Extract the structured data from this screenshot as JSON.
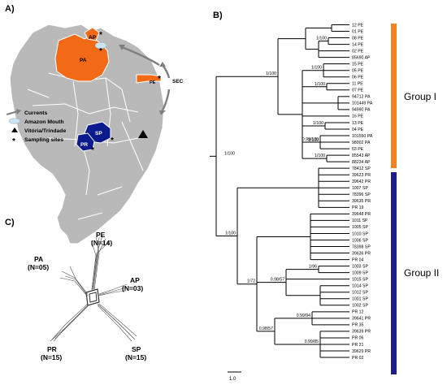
{
  "panels": {
    "a": "A)",
    "b": "B)",
    "c": "C)"
  },
  "map": {
    "state_labels": [
      "AP",
      "PA",
      "PE",
      "SP",
      "PR"
    ],
    "side_label": "SEC",
    "legend": [
      {
        "icon": "current-arrow-icon",
        "label": "Currents"
      },
      {
        "icon": "amazon-mouth-icon",
        "label": "Amazon Mouth"
      },
      {
        "icon": "triangle-icon",
        "label": "Vitória/Trindade"
      },
      {
        "icon": "asterisk-icon",
        "label": "Sampling sites"
      }
    ],
    "colors": {
      "north": "#f26a16",
      "south": "#0b1a8c",
      "land": "#b9b9b9"
    }
  },
  "tree": {
    "leaves": [
      "12 PE",
      "01 PE",
      "08 PE",
      "14 PE",
      "02 PE",
      "85690 AP",
      "15 PE",
      "05 PE",
      "06 PE",
      "11 PE",
      "07 PE",
      "94712 PA",
      "101449 PA",
      "94990 PA",
      "16 PE",
      "13 PE",
      "04 PE",
      "101550 PA",
      "98002 PA",
      "03 PE",
      "85543 AP",
      "88234 AP",
      "78412 SP",
      "39623 PR",
      "39642 PR",
      "1007 SP",
      "78396 SP",
      "39635 PR",
      "PR 19",
      "39648 PR",
      "1011 SP",
      "1005 SP",
      "1010 SP",
      "1006 SP",
      "78398 SP",
      "39636 PR",
      "PR 04",
      "1003 SP",
      "1009 SP",
      "1015 SP",
      "1014 SP",
      "1012 SP",
      "1001 SP",
      "1002 SP",
      "PR 12",
      "39641 PR",
      "PR 35",
      "39639 PR",
      "PR 06",
      "PR 21",
      "39629 PR",
      "PR 02"
    ],
    "support": [
      "1/100",
      "1/100",
      "1/100",
      "1/100",
      "1/100",
      "1/100",
      "1/100",
      "0.99/100",
      "1/100",
      "1/100",
      "1/96",
      "0.98/57",
      "1/72",
      "0.98/57",
      "0.99/94",
      "0.99/85"
    ],
    "scale": "1.0",
    "groups": [
      {
        "label": "Group I",
        "color": "#f58220"
      },
      {
        "label": "Group II",
        "color": "#1b1f8a"
      }
    ]
  },
  "network": {
    "labels": [
      {
        "name": "PE",
        "n": "(N=14)"
      },
      {
        "name": "PA",
        "n": "(N=05)"
      },
      {
        "name": "AP",
        "n": "(N=03)"
      },
      {
        "name": "PR",
        "n": "(N=15)"
      },
      {
        "name": "SP",
        "n": "(N=15)"
      }
    ]
  }
}
